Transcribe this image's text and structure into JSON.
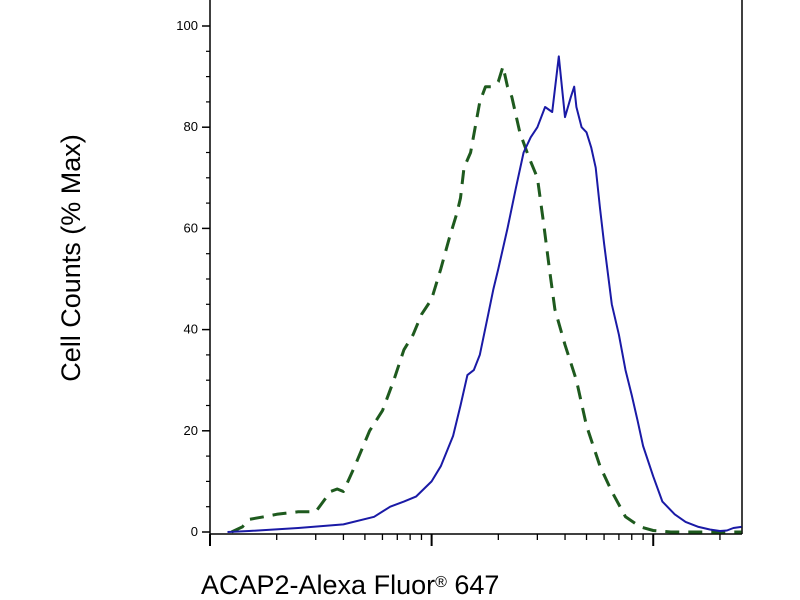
{
  "chart_data": {
    "type": "line",
    "title": "",
    "xlabel": {
      "main": "ACAP2-Alexa Fluor",
      "superscript": "®",
      "suffix": " 647"
    },
    "ylabel": "Cell Counts (% Max)",
    "xscale": "log",
    "x_tick_labels": [],
    "ylim": [
      0,
      100
    ],
    "yticks": [
      "0",
      "20",
      "40",
      "60",
      "80",
      "100"
    ],
    "grid": false,
    "legend": "none",
    "series": [
      {
        "style": "dashed",
        "color": "#1e5a1e",
        "x": [
          2.5,
          2.8,
          3.0,
          3.5,
          4.0,
          5.0,
          6.0,
          7.0,
          7.5,
          8.0,
          9.0,
          10.5,
          12.0,
          13.5,
          15.0,
          16.5,
          18.0,
          20.0,
          22.0,
          24.0,
          26.0,
          27.0,
          28.0,
          30.0,
          33.0,
          35.0,
          37.0,
          40.0,
          42.0,
          44.0,
          46.0,
          50.0,
          55.0,
          60.0,
          64.0,
          68.0,
          72.0,
          80.0,
          90.0,
          100.0,
          115.0,
          130.0,
          150.0,
          175.0,
          200.0,
          240.0,
          280.0,
          330.0,
          400.0,
          500.0
        ],
        "values": [
          0,
          1,
          2.5,
          3,
          3.5,
          4,
          4,
          8,
          8.5,
          8,
          13,
          20,
          24,
          30,
          36,
          39,
          43,
          46,
          52,
          58,
          63,
          66,
          72,
          75,
          85,
          88,
          88,
          89,
          92,
          88,
          86,
          79,
          74,
          70,
          61,
          52,
          44,
          37,
          30,
          21,
          13,
          8,
          3,
          1,
          0.3,
          0,
          0,
          0,
          0,
          0
        ]
      },
      {
        "style": "solid",
        "color": "#1a1aa6",
        "x": [
          2.4,
          3.0,
          5.0,
          8.0,
          11.0,
          13.0,
          15.0,
          17.0,
          20.0,
          22.0,
          25.0,
          27.0,
          29.0,
          31.0,
          33.0,
          36.0,
          38.0,
          40.0,
          44.0,
          48.0,
          52.0,
          56.0,
          60.0,
          65.0,
          70.0,
          75.0,
          80.0,
          85.0,
          88.0,
          90.0,
          95.0,
          100.0,
          105.0,
          110.0,
          115.0,
          120.0,
          130.0,
          140.0,
          150.0,
          160.0,
          170.0,
          180.0,
          200.0,
          220.0,
          250.0,
          280.0,
          320.0,
          360.0,
          400.0,
          430.0,
          460.0,
          500.0
        ],
        "values": [
          0,
          0.2,
          0.8,
          1.5,
          3,
          5,
          6,
          7,
          10,
          13,
          19,
          25,
          31,
          32,
          35,
          43,
          48,
          52,
          60,
          68,
          75,
          78,
          80,
          84,
          83,
          94,
          82,
          86,
          88,
          84,
          80,
          79,
          76,
          72,
          64,
          57,
          45,
          39,
          32,
          27,
          22,
          17,
          11,
          6,
          3.5,
          2,
          1,
          0.5,
          0.2,
          0.3,
          0.8,
          1
        ]
      }
    ]
  }
}
